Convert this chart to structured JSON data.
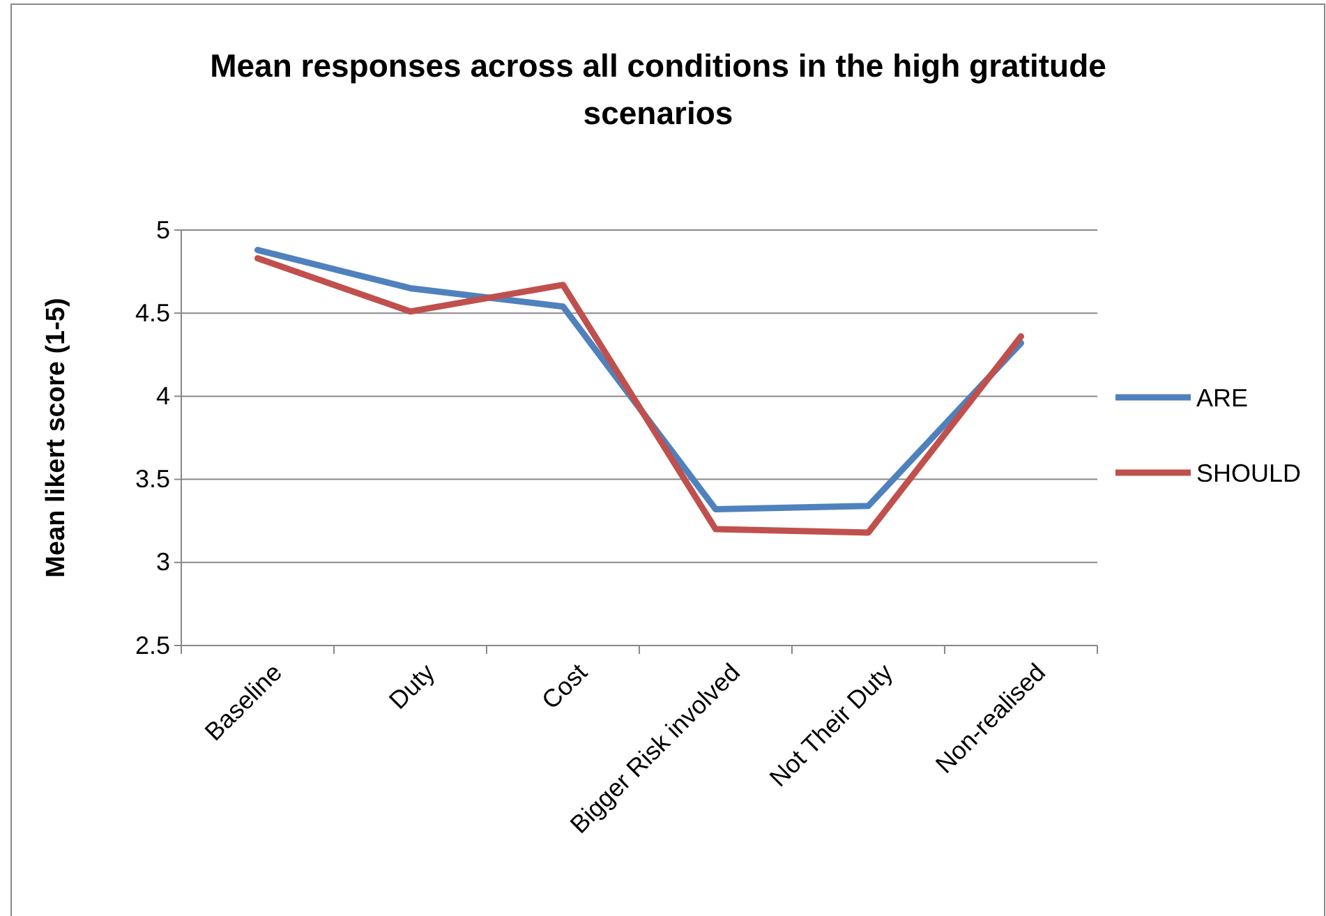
{
  "chart_data": {
    "type": "line",
    "title": "Mean responses across all conditions in the high gratitude scenarios",
    "ylabel": "Mean likert score (1-5)",
    "categories": [
      "Baseline",
      "Duty",
      "Cost",
      "Bigger Risk involved",
      "Not  Their Duty",
      "Non-realised"
    ],
    "series": [
      {
        "name": "ARE",
        "color": "#4f81bd",
        "values": [
          4.88,
          4.65,
          4.54,
          3.32,
          3.34,
          4.32
        ]
      },
      {
        "name": "SHOULD",
        "color": "#c0504d",
        "values": [
          4.83,
          4.51,
          4.67,
          3.2,
          3.18,
          4.36
        ]
      }
    ],
    "ylim": [
      2.5,
      5
    ],
    "yticks": [
      2.5,
      3,
      3.5,
      4,
      4.5,
      5
    ],
    "grid": "y",
    "legend": "right",
    "marker": "none",
    "line_style": "solid"
  }
}
